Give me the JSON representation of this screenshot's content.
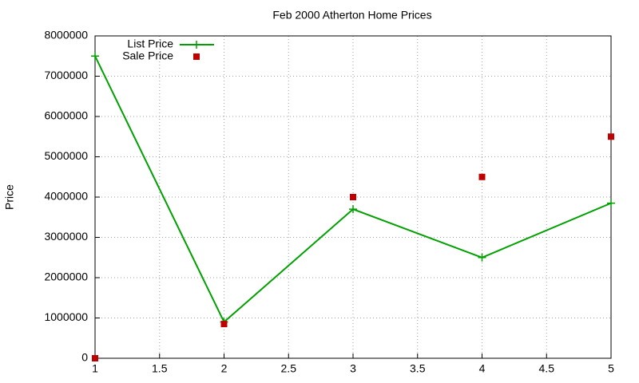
{
  "chart_data": {
    "type": "line",
    "title": "Feb 2000 Atherton Home Prices",
    "y_label": "Price",
    "x": [
      1,
      2,
      3,
      4,
      5
    ],
    "series": [
      {
        "name": "List Price",
        "color": "#00a000",
        "mode": "lines+points",
        "marker": "plus",
        "values": [
          7500000,
          900000,
          3700000,
          2500000,
          3850000
        ]
      },
      {
        "name": "Sale Price",
        "color": "#c00000",
        "mode": "points",
        "marker": "square",
        "values": [
          0,
          850000,
          4000000,
          4500000,
          5500000
        ]
      }
    ],
    "xlim": [
      1,
      5
    ],
    "xticks": [
      1,
      1.5,
      2,
      2.5,
      3,
      3.5,
      4,
      4.5,
      5
    ],
    "ylim": [
      0,
      8000000
    ],
    "yticks": [
      0,
      1000000,
      2000000,
      3000000,
      4000000,
      5000000,
      6000000,
      7000000,
      8000000
    ],
    "grid": true,
    "legend": "top-left"
  }
}
